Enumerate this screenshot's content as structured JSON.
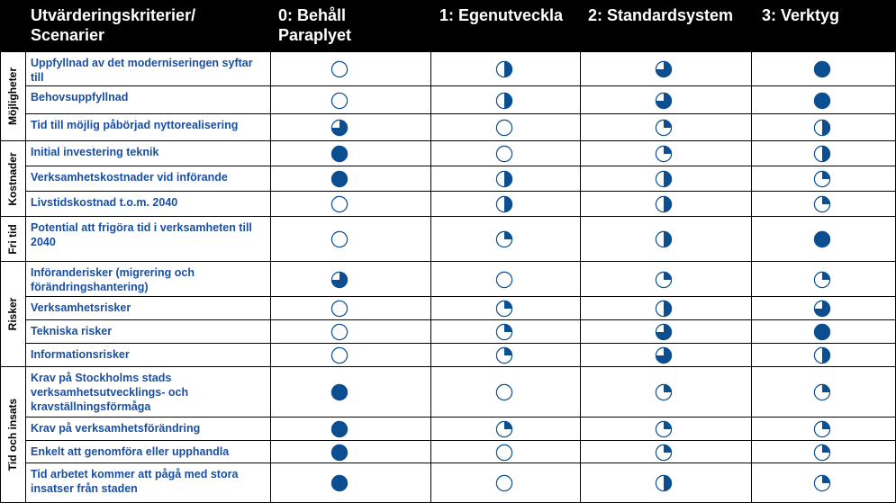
{
  "colors": {
    "accent": "#0b4f91",
    "text": "#1a4fa0",
    "header_bg": "#000000"
  },
  "header": {
    "criteria": "Utvärderingskriterier/\nScenarier",
    "scenarios": [
      "0: Behåll\nParaplyet",
      "1: Egenutveckla",
      "2: Standardsystem",
      "3: Verktyg"
    ]
  },
  "groups": [
    {
      "label": "Möjligheter"
    },
    {
      "label": "Kostnader"
    },
    {
      "label": "Fri tid"
    },
    {
      "label": "Risker"
    },
    {
      "label": "Tid och insats"
    }
  ],
  "rows": [
    {
      "criterion": "Uppfyllnad av det moderniseringen syftar  till",
      "scores": [
        0,
        0.5,
        0.75,
        1
      ]
    },
    {
      "criterion": "Behovsuppfyllnad",
      "scores": [
        0,
        0.5,
        0.75,
        1
      ]
    },
    {
      "criterion": "Tid till möjlig påbörjad nyttorealisering",
      "scores": [
        0.75,
        0,
        0.25,
        0.5
      ]
    },
    {
      "criterion": "Initial investering teknik",
      "scores": [
        1,
        0,
        0.25,
        0.5
      ]
    },
    {
      "criterion": "Verksamhetskostnader  vid införande",
      "scores": [
        1,
        0.5,
        0.5,
        0.25
      ]
    },
    {
      "criterion": "Livstidskostnad  t.o.m. 2040",
      "scores": [
        0,
        0.5,
        0.5,
        0.25
      ]
    },
    {
      "criterion": "Potential att frigöra tid i verksamheten till 2040",
      "scores": [
        0,
        0.25,
        0.5,
        1
      ]
    },
    {
      "criterion": "Införanderisker (migrering och förändringshantering)",
      "scores": [
        0.75,
        0,
        0.25,
        0.25
      ]
    },
    {
      "criterion": "Verksamhetsrisker",
      "scores": [
        0,
        0.25,
        0.5,
        0.75
      ]
    },
    {
      "criterion": "Tekniska risker",
      "scores": [
        0,
        0.25,
        0.75,
        1
      ]
    },
    {
      "criterion": "Informationsrisker",
      "scores": [
        0,
        0.25,
        0.75,
        0.5
      ]
    },
    {
      "criterion": "Krav på Stockholms stads verksamhetsutvecklings-  och kravställningsförmåga",
      "scores": [
        1,
        0,
        0.25,
        0.25
      ]
    },
    {
      "criterion": "Krav på verksamhetsförändring",
      "scores": [
        1,
        0.25,
        0.25,
        0.25
      ]
    },
    {
      "criterion": "Enkelt att genomföra eller upphandla",
      "scores": [
        1,
        0,
        0.25,
        0.25
      ]
    },
    {
      "criterion": "Tid arbetet kommer att pågå med stora insatser från staden",
      "scores": [
        1,
        0,
        0.5,
        0.25
      ]
    }
  ]
}
